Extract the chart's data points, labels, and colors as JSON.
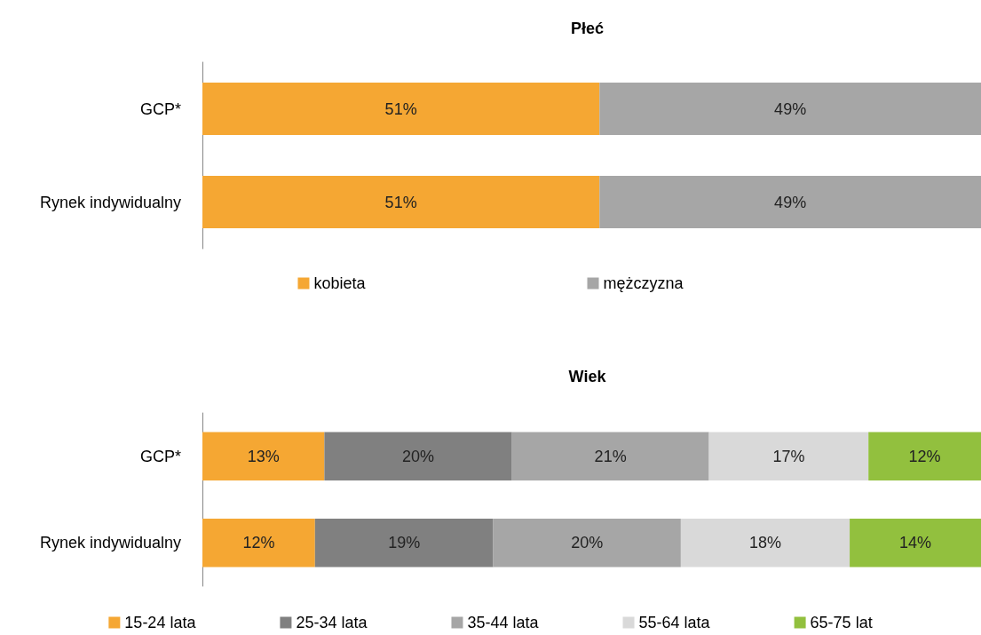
{
  "chart_data": [
    {
      "type": "bar",
      "title": "Płeć",
      "orientation": "horizontal",
      "stacked": true,
      "categories": [
        "GCP*",
        "Rynek indywidualny"
      ],
      "xlim": [
        0,
        100
      ],
      "tick_labels": "y",
      "legend": "bottom",
      "grid": false,
      "series": [
        {
          "name": "kobieta",
          "color": "#f5a733",
          "values": [
            51,
            51
          ],
          "value_labels": [
            "51%",
            "51%"
          ]
        },
        {
          "name": "mężczyzna",
          "color": "#a6a6a6",
          "values": [
            49,
            49
          ],
          "value_labels": [
            "49%",
            "49%"
          ]
        }
      ]
    },
    {
      "type": "bar",
      "title": "Wiek",
      "orientation": "horizontal",
      "stacked": true,
      "categories": [
        "GCP*",
        "Rynek indywidualny"
      ],
      "xlim": [
        0,
        83
      ],
      "tick_labels": "y",
      "legend": "bottom",
      "grid": false,
      "series": [
        {
          "name": "15-24 lata",
          "color": "#f5a733",
          "values": [
            13,
            12
          ],
          "value_labels": [
            "13%",
            "12%"
          ]
        },
        {
          "name": "25-34 lata",
          "color": "#808080",
          "values": [
            20,
            19
          ],
          "value_labels": [
            "20%",
            "19%"
          ]
        },
        {
          "name": "35-44 lata",
          "color": "#a6a6a6",
          "values": [
            21,
            20
          ],
          "value_labels": [
            "21%",
            "20%"
          ]
        },
        {
          "name": "55-64 lata",
          "color": "#d9d9d9",
          "values": [
            17,
            18
          ],
          "value_labels": [
            "17%",
            "18%"
          ]
        },
        {
          "name": "65-75 lat",
          "color": "#92c03e",
          "values": [
            12,
            14
          ],
          "value_labels": [
            "12%",
            "14%"
          ]
        }
      ]
    }
  ]
}
